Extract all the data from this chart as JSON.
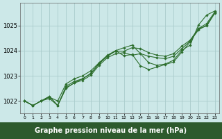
{
  "fig_width": 3.2,
  "fig_height": 2.0,
  "dpi": 100,
  "background_color": "#cce8e8",
  "grid_color": "#aacccc",
  "line_color": "#2d6e2d",
  "xlabel": "Graphe pression niveau de la mer (hPa)",
  "xlabel_fontsize": 7,
  "xlabel_bg": "#2d5a2d",
  "xlabel_fg": "#ffffff",
  "ytick_fontsize": 6,
  "xtick_fontsize": 4.5,
  "ylim": [
    1021.5,
    1025.9
  ],
  "xlim": [
    -0.5,
    23.5
  ],
  "yticks": [
    1022,
    1023,
    1024,
    1025
  ],
  "xticks": [
    0,
    1,
    2,
    3,
    4,
    5,
    6,
    7,
    8,
    9,
    10,
    11,
    12,
    13,
    14,
    15,
    16,
    17,
    18,
    19,
    20,
    21,
    22,
    23
  ],
  "series": [
    [
      1022.0,
      1021.82,
      1022.0,
      1022.1,
      1021.82,
      1022.5,
      1022.72,
      1022.88,
      1023.1,
      1023.5,
      1023.8,
      1024.0,
      1024.12,
      1024.22,
      1023.88,
      1023.52,
      1023.42,
      1023.47,
      1023.62,
      1024.02,
      1024.22,
      1025.02,
      1025.42,
      1025.58
    ],
    [
      1022.0,
      1021.82,
      1022.0,
      1022.15,
      1022.0,
      1022.68,
      1022.88,
      1023.0,
      1023.2,
      1023.52,
      1023.82,
      1024.0,
      1023.8,
      1023.85,
      1023.4,
      1023.25,
      1023.35,
      1023.45,
      1023.55,
      1023.95,
      1024.35,
      1024.88,
      1024.98,
      1025.5
    ],
    [
      1022.0,
      1021.82,
      1022.0,
      1022.18,
      1021.82,
      1022.52,
      1022.72,
      1022.82,
      1023.02,
      1023.42,
      1023.72,
      1023.88,
      1023.92,
      1023.82,
      1023.88,
      1023.78,
      1023.72,
      1023.68,
      1023.78,
      1024.08,
      1024.38,
      1024.82,
      1025.02,
      1025.52
    ],
    [
      1022.0,
      1021.82,
      1022.0,
      1022.18,
      1021.82,
      1022.58,
      1022.78,
      1022.88,
      1023.08,
      1023.48,
      1023.78,
      1023.98,
      1023.98,
      1024.12,
      1024.08,
      1023.92,
      1023.82,
      1023.78,
      1023.88,
      1024.18,
      1024.42,
      1024.88,
      1025.08,
      1025.55
    ]
  ]
}
